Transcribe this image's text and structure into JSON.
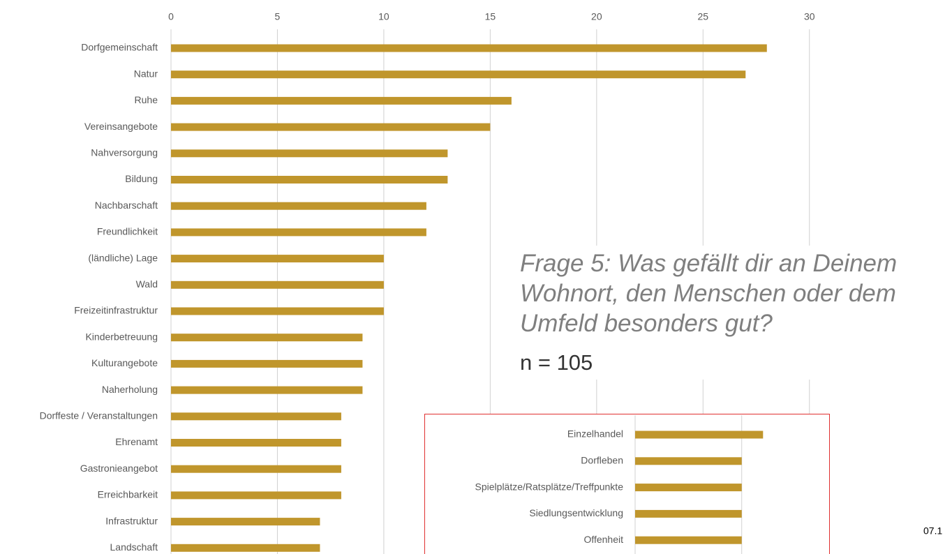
{
  "chart_data": [
    {
      "type": "barh",
      "categories": [
        "Dorfgemeinschaft",
        "Natur",
        "Ruhe",
        "Vereinsangebote",
        "Nahversorgung",
        "Bildung",
        "Nachbarschaft",
        "Freundlichkeit",
        "(ländliche) Lage",
        "Wald",
        "Freizeitinfrastruktur",
        "Kinderbetreuung",
        "Kulturangebote",
        "Naherholung",
        "Dorffeste / Veranstaltungen",
        "Ehrenamt",
        "Gastronieangebot",
        "Erreichbarkeit",
        "Infrastruktur",
        "Landschaft"
      ],
      "values": [
        28,
        27,
        16,
        15,
        13,
        13,
        12,
        12,
        10,
        10,
        10,
        9,
        9,
        9,
        8,
        8,
        8,
        8,
        7,
        7
      ],
      "color": "#c0962c",
      "xlim": [
        0,
        30.5
      ],
      "xticks": [
        0,
        5,
        10,
        15,
        20,
        25,
        30
      ],
      "grid": true
    },
    {
      "type": "barh",
      "categories": [
        "Einzelhandel",
        "Dorfleben",
        "Spielplätze/Ratsplätze/Treffpunkte",
        "Siedlungsentwicklung",
        "Offenheit"
      ],
      "values": [
        6,
        5,
        5,
        5,
        5
      ],
      "color": "#c0962c",
      "xlim": [
        0,
        9.1
      ],
      "xticks": [
        0,
        5
      ],
      "grid": true
    }
  ],
  "annotation": {
    "question": [
      "Frage 5: Was gefällt dir an Deinem",
      "Wohnort, den Menschen oder dem",
      "Umfeld besonders gut?"
    ],
    "n": "n = 105"
  },
  "page_number": "07.1"
}
